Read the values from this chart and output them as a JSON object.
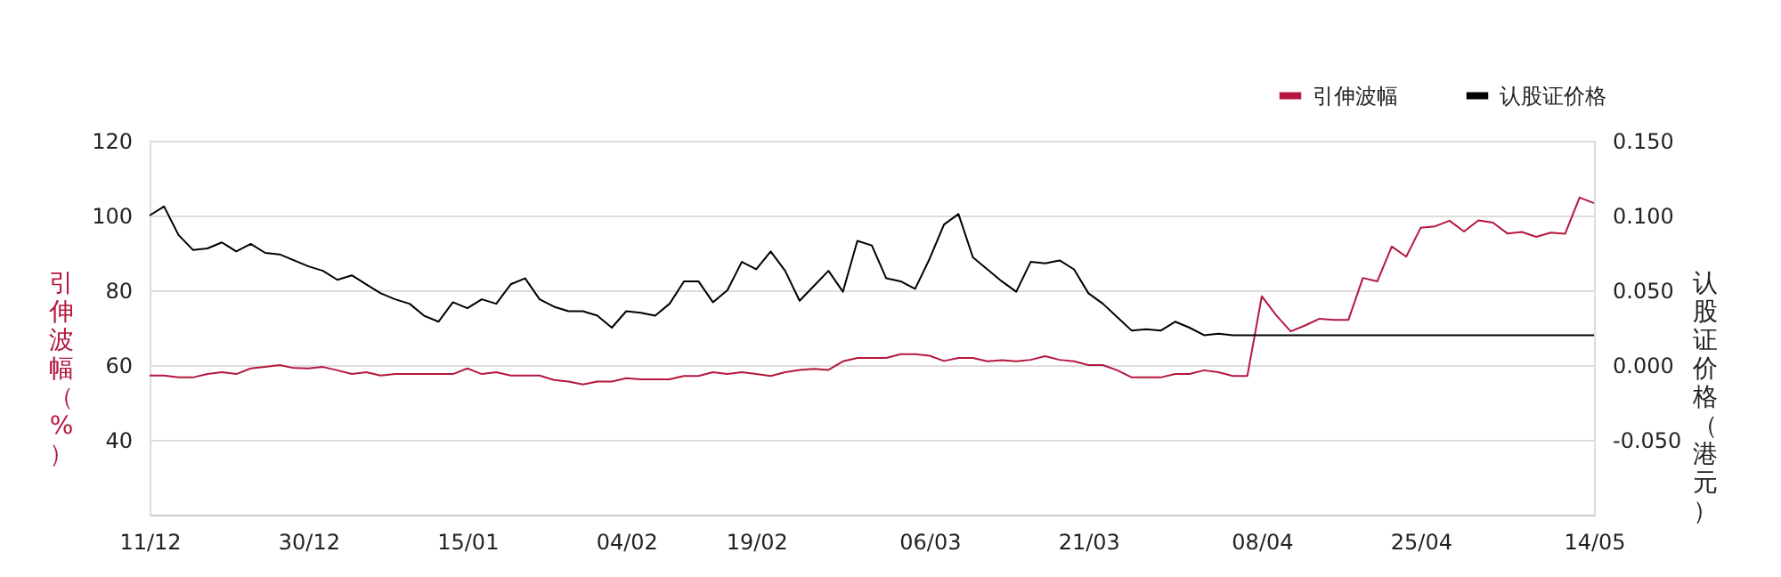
{
  "chart_data": {
    "type": "line",
    "ylabel": "引伸波幅（%）",
    "y2label": "认股证价格（港元）",
    "categories": [
      "11/12",
      null,
      null,
      null,
      null,
      null,
      null,
      null,
      null,
      null,
      null,
      "30/12",
      null,
      null,
      null,
      null,
      null,
      null,
      null,
      null,
      null,
      null,
      "15/01",
      null,
      null,
      null,
      null,
      null,
      null,
      null,
      null,
      null,
      null,
      "04/02",
      null,
      null,
      null,
      null,
      null,
      null,
      null,
      null,
      "19/02",
      null,
      null,
      null,
      null,
      null,
      null,
      null,
      null,
      null,
      null,
      null,
      "06/03",
      null,
      null,
      null,
      null,
      null,
      null,
      null,
      null,
      null,
      null,
      "21/03",
      null,
      null,
      null,
      null,
      null,
      null,
      null,
      null,
      null,
      null,
      null,
      "08/04",
      null,
      null,
      null,
      null,
      null,
      null,
      null,
      null,
      null,
      null,
      "25/04",
      null,
      null,
      null,
      null,
      null,
      null,
      null,
      null,
      null,
      null,
      null,
      "14/05"
    ],
    "series": [
      {
        "name": "引伸波幅",
        "color": "#b5173f",
        "axis": "y",
        "values": [
          57.2,
          57.2,
          56.7,
          56.7,
          57.6,
          58.1,
          57.6,
          59.1,
          59.5,
          60.0,
          59.2,
          59.1,
          59.5,
          58.6,
          57.6,
          58.1,
          57.2,
          57.6,
          57.6,
          57.6,
          57.6,
          57.6,
          59.1,
          57.6,
          58.1,
          57.2,
          57.2,
          57.2,
          56.0,
          55.6,
          54.8,
          55.6,
          55.6,
          56.5,
          56.2,
          56.2,
          56.2,
          57.1,
          57.1,
          58.1,
          57.6,
          58.1,
          57.6,
          57.1,
          58.1,
          58.7,
          59.0,
          58.7,
          61.0,
          61.9,
          61.9,
          61.9,
          62.9,
          62.9,
          62.5,
          61.1,
          61.9,
          61.9,
          61.0,
          61.3,
          61.0,
          61.4,
          62.4,
          61.4,
          61.0,
          60.0,
          60.0,
          58.6,
          56.7,
          56.7,
          56.7,
          57.6,
          57.6,
          58.6,
          58.1,
          57.1,
          57.1,
          78.4,
          73.3,
          69.0,
          70.6,
          72.4,
          72.1,
          72.1,
          83.3,
          82.4,
          91.7,
          89.0,
          96.7,
          97.1,
          98.6,
          95.7,
          98.7,
          98.1,
          95.2,
          95.6,
          94.3,
          95.4,
          95.1,
          104.8,
          103.3
        ]
      },
      {
        "name": "认股证价格",
        "color": "#000000",
        "axis": "y2",
        "values": [
          0.1,
          0.106,
          0.087,
          0.077,
          0.078,
          0.082,
          0.076,
          0.081,
          0.075,
          0.074,
          0.07,
          0.066,
          0.063,
          0.057,
          0.06,
          0.054,
          0.048,
          0.044,
          0.041,
          0.033,
          0.029,
          0.042,
          0.038,
          0.044,
          0.041,
          0.054,
          0.058,
          0.044,
          0.039,
          0.036,
          0.036,
          0.033,
          0.025,
          0.036,
          0.035,
          0.033,
          0.041,
          0.056,
          0.056,
          0.042,
          0.05,
          0.069,
          0.064,
          0.076,
          0.063,
          0.043,
          0.053,
          0.063,
          0.049,
          0.083,
          0.08,
          0.058,
          0.056,
          0.051,
          0.071,
          0.094,
          0.101,
          0.072,
          0.064,
          0.056,
          0.049,
          0.069,
          0.068,
          0.07,
          0.064,
          0.048,
          0.041,
          0.032,
          0.023,
          0.024,
          0.023,
          0.029,
          0.025,
          0.02,
          0.021,
          0.02,
          0.02,
          0.02,
          0.02,
          0.02,
          0.02,
          0.02,
          0.02,
          0.02,
          0.02,
          0.02,
          0.02,
          0.02,
          0.02,
          0.02,
          0.02,
          0.02,
          0.02,
          0.02,
          0.02,
          0.02,
          0.02,
          0.02,
          0.02,
          0.02,
          0.02
        ]
      }
    ],
    "ylim": [
      20,
      120
    ],
    "yticks": [
      40,
      60,
      80,
      100,
      120
    ],
    "y2lim": [
      -0.1,
      0.15
    ],
    "y2ticks": [
      {
        "value": -0.05,
        "label": "-0.050"
      },
      {
        "value": 0,
        "label": "0.000"
      },
      {
        "value": 0.05,
        "label": "0.050"
      },
      {
        "value": 0.1,
        "label": "0.100"
      },
      {
        "value": 0.15,
        "label": "0.150"
      }
    ],
    "grid": "y",
    "legend": "top right",
    "line_style": "solid",
    "marker": "none"
  }
}
